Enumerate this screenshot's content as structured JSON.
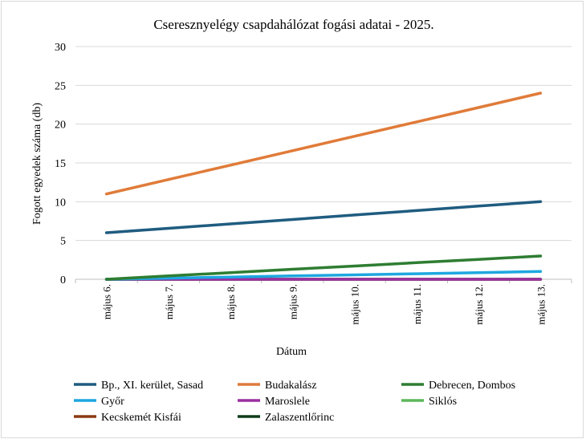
{
  "chart_data": {
    "type": "line",
    "title": "Cseresznyelégy csapdahálózat fogási adatai - 2025.",
    "xlabel": "Dátum",
    "ylabel": "Fogott egyedek száma (db)",
    "categories": [
      "május 6.",
      "május 7.",
      "május 8.",
      "május 9.",
      "május 10.",
      "május 11.",
      "május 12.",
      "május 13."
    ],
    "ylim": [
      0,
      30
    ],
    "yticks": [
      0,
      5,
      10,
      15,
      20,
      25,
      30
    ],
    "grid": true,
    "legend_position": "bottom",
    "series": [
      {
        "name": "Bp., XI. kerület, Sasad",
        "color": "#1f5c80",
        "values": [
          6,
          6.57,
          7.14,
          7.71,
          8.29,
          8.86,
          9.43,
          10
        ]
      },
      {
        "name": "Budakalász",
        "color": "#e07b39",
        "values": [
          11,
          12.86,
          14.71,
          16.57,
          18.43,
          20.29,
          22.14,
          24
        ]
      },
      {
        "name": "Debrecen, Dombos",
        "color": "#2e7d32",
        "values": [
          0,
          0.43,
          0.86,
          1.29,
          1.71,
          2.14,
          2.57,
          3
        ]
      },
      {
        "name": "Győr",
        "color": "#1ea7e0",
        "values": [
          0,
          0.14,
          0.29,
          0.43,
          0.57,
          0.71,
          0.86,
          1
        ]
      },
      {
        "name": "Maroslele",
        "color": "#9b2fa0",
        "values": [
          0,
          0,
          0,
          0,
          0,
          0,
          0,
          0
        ]
      },
      {
        "name": "Siklós",
        "color": "#5cb85c",
        "values": [
          0,
          0,
          0,
          0,
          0,
          0,
          0,
          0
        ]
      },
      {
        "name": "Kecskemét Kisfái",
        "color": "#8b3a12",
        "values": [
          0,
          0,
          0,
          0,
          0,
          0,
          0,
          0
        ]
      },
      {
        "name": "Zalaszentlőrinc",
        "color": "#0d3d1a",
        "values": [
          0,
          0,
          0,
          0,
          0,
          0,
          0,
          0
        ]
      }
    ]
  }
}
